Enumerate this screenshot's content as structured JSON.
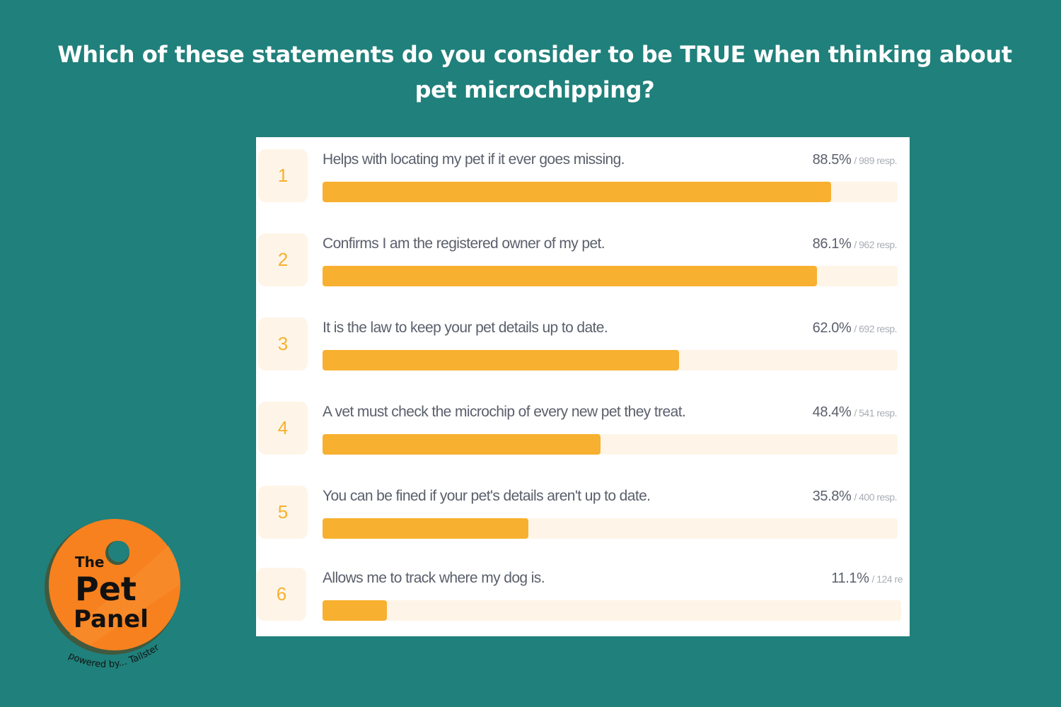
{
  "header": {
    "title": "Which of these statements do you consider to be TRUE when thinking about pet microchipping?"
  },
  "colors": {
    "background": "#20807B",
    "bar_fill": "#F7B02F",
    "bar_track": "#FEF5E8",
    "rank_text": "#F7B02F",
    "logo_orange": "#F7811E"
  },
  "chart_data": {
    "type": "bar",
    "orientation": "horizontal",
    "title": "Which of these statements do you consider to be TRUE when thinking about pet microchipping?",
    "xlabel": "",
    "ylabel": "",
    "xlim": [
      0,
      100
    ],
    "grid": false,
    "legend": "none",
    "categories": [
      "Helps with locating my pet if it ever goes missing.",
      "Confirms I am the registered owner of my pet.",
      "It is the law to keep your pet details up to date.",
      "A vet must check the microchip of every new pet they treat.",
      "You can be fined if your pet's details aren't up to date.",
      "Allows me to track where my dog is."
    ],
    "values": [
      88.5,
      86.1,
      62.0,
      48.4,
      35.8,
      11.1
    ],
    "responses": [
      989,
      962,
      692,
      541,
      400,
      124
    ],
    "unit": "%"
  },
  "rows": [
    {
      "rank": "1",
      "label": "Helps with locating my pet if it ever goes missing.",
      "pct": "88.5%",
      "resp": "/ 989 resp.",
      "value": 88.5
    },
    {
      "rank": "2",
      "label": "Confirms I am the registered owner of my pet.",
      "pct": "86.1%",
      "resp": "/ 962 resp.",
      "value": 86.1
    },
    {
      "rank": "3",
      "label": "It is the law to keep your pet details up to date.",
      "pct": "62.0%",
      "resp": "/ 692 resp.",
      "value": 62.0
    },
    {
      "rank": "4",
      "label": "A vet must check the microchip of every new pet they treat.",
      "pct": "48.4%",
      "resp": "/ 541 resp.",
      "value": 48.4
    },
    {
      "rank": "5",
      "label": "You can be fined if your pet's details aren't up to date.",
      "pct": "35.8%",
      "resp": "/ 400 resp.",
      "value": 35.8
    },
    {
      "rank": "6",
      "label": "Allows me to track where my dog is.",
      "pct": "11.1%",
      "resp": "/ 124 re",
      "value": 11.1
    }
  ],
  "logo": {
    "line1": "The",
    "line2": "Pet",
    "line3": "Panel",
    "tagline": "powered by... Tailster"
  }
}
